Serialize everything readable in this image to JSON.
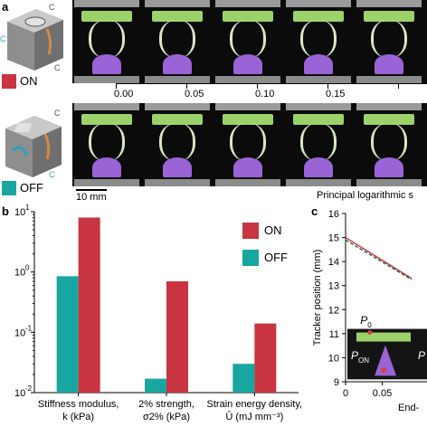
{
  "panel_a": {
    "label": "a",
    "on_label": "ON",
    "off_label": "OFF",
    "on_color": "#c8343f",
    "off_color": "#18a6a0",
    "cad_top_labels": [
      "C",
      "C",
      "C"
    ],
    "cad_bottom_labels": [
      "C",
      "C"
    ],
    "scale_bar": "10 mm",
    "strain_ticks": [
      "0.00",
      "0.05",
      "0.10",
      "0.15"
    ],
    "strain_axis_title": "Principal logarithmic s"
  },
  "panel_b": {
    "label": "b",
    "legend": [
      {
        "name": "ON",
        "color": "#c8343f"
      },
      {
        "name": "OFF",
        "color": "#18a6a0"
      }
    ]
  },
  "panel_c": {
    "label": "c",
    "ylabel": "Tracker position (mm)",
    "xlabel": "End-",
    "inset_labels": {
      "p0": "P",
      "pon": "P",
      "p": "P"
    }
  },
  "chart_data": [
    {
      "type": "bar",
      "scale": "log",
      "ylim": [
        0.01,
        10
      ],
      "y_tick_labels": [
        "10",
        "10",
        "10",
        "10"
      ],
      "y_tick_exponents": [
        "-2",
        "-1",
        "0",
        "1"
      ],
      "categories": [
        {
          "line1": "Stiffness modulus,",
          "line2": "k (kPa)"
        },
        {
          "line1": "2% strength,",
          "line2": "σ2% (kPa)"
        },
        {
          "line1": "Strain energy density,",
          "line2": "Û (mJ mm⁻³)"
        }
      ],
      "series": [
        {
          "name": "OFF",
          "color": "#18a6a0",
          "values": [
            0.85,
            0.017,
            0.03
          ]
        },
        {
          "name": "ON",
          "color": "#c8343f",
          "values": [
            8.0,
            0.7,
            0.14
          ]
        }
      ]
    },
    {
      "type": "line",
      "ylim": [
        9,
        16
      ],
      "y_ticks": [
        "9",
        "10",
        "11",
        "12",
        "13",
        "14",
        "15",
        "16"
      ],
      "x_ticks": [
        "0",
        "0.05"
      ],
      "series": [
        {
          "color": "#c8343f",
          "x": [
            0,
            0.09
          ],
          "y": [
            15.0,
            13.3
          ]
        },
        {
          "color": "#2a6b4a",
          "x": [
            0,
            0.09
          ],
          "y": [
            14.9,
            13.25
          ]
        }
      ]
    }
  ]
}
